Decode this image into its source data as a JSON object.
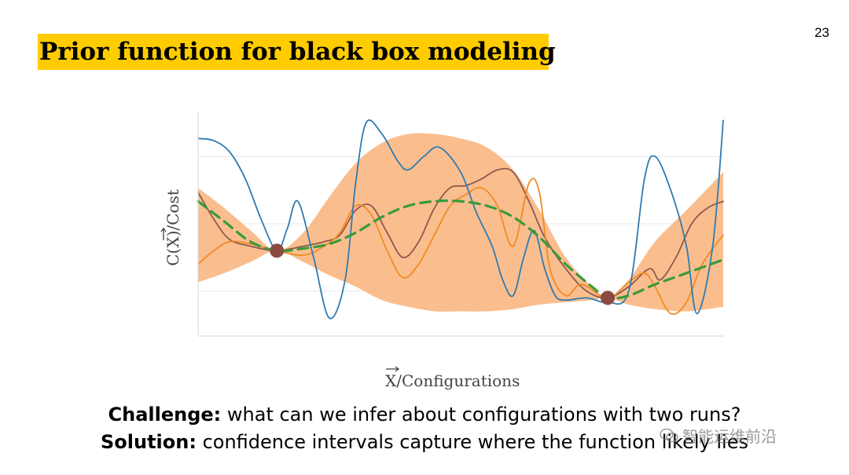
{
  "slide": {
    "number": "23",
    "title": "Prior function for black box modeling"
  },
  "footer": {
    "challenge_label": "Challenge:",
    "challenge_text": " what can we infer about configurations with two runs?",
    "solution_label": "Solution:",
    "solution_text": " confidence intervals capture where the function likely lies"
  },
  "watermark": {
    "text": "智能运维前沿",
    "icon": "wechat-icon"
  },
  "chart_data": {
    "type": "line",
    "title": "",
    "xlabel": "X/Configurations",
    "ylabel": "C(X)/Cost",
    "xlim": [
      0,
      1
    ],
    "ylim": [
      0,
      1
    ],
    "grid": true,
    "legend": "none",
    "colors": {
      "band": "#f9b37a",
      "mean": "#3a9a3a",
      "blue": "#2f7bb0",
      "orange": "#f08a24",
      "brown": "#8c5a4e",
      "observation": "#8b4a42"
    },
    "observations": [
      {
        "x": 0.15,
        "y": 0.38
      },
      {
        "x": 0.78,
        "y": 0.17
      }
    ],
    "confidence_band": {
      "x": [
        0.0,
        0.05,
        0.1,
        0.15,
        0.2,
        0.25,
        0.3,
        0.35,
        0.4,
        0.45,
        0.5,
        0.55,
        0.6,
        0.65,
        0.7,
        0.75,
        0.78,
        0.82,
        0.87,
        0.93,
        1.0
      ],
      "upper": [
        0.66,
        0.57,
        0.47,
        0.38,
        0.46,
        0.62,
        0.77,
        0.86,
        0.9,
        0.9,
        0.88,
        0.84,
        0.74,
        0.56,
        0.35,
        0.22,
        0.17,
        0.25,
        0.42,
        0.56,
        0.73
      ],
      "lower": [
        0.24,
        0.28,
        0.33,
        0.38,
        0.33,
        0.27,
        0.22,
        0.16,
        0.13,
        0.11,
        0.11,
        0.11,
        0.12,
        0.14,
        0.15,
        0.16,
        0.17,
        0.14,
        0.12,
        0.11,
        0.13
      ]
    },
    "series": [
      {
        "key": "mean",
        "dashed": true,
        "x": [
          0.0,
          0.05,
          0.1,
          0.15,
          0.2,
          0.25,
          0.3,
          0.35,
          0.4,
          0.45,
          0.5,
          0.55,
          0.6,
          0.65,
          0.7,
          0.75,
          0.78,
          0.82,
          0.87,
          0.93,
          1.0
        ],
        "y": [
          0.6,
          0.51,
          0.42,
          0.38,
          0.39,
          0.41,
          0.46,
          0.53,
          0.58,
          0.6,
          0.6,
          0.58,
          0.53,
          0.44,
          0.32,
          0.22,
          0.17,
          0.18,
          0.23,
          0.28,
          0.34
        ]
      },
      {
        "key": "blue",
        "dashed": false,
        "x": [
          0.0,
          0.03,
          0.06,
          0.09,
          0.12,
          0.15,
          0.17,
          0.19,
          0.22,
          0.25,
          0.28,
          0.3,
          0.32,
          0.35,
          0.38,
          0.4,
          0.43,
          0.46,
          0.5,
          0.53,
          0.56,
          0.58,
          0.6,
          0.62,
          0.64,
          0.66,
          0.68,
          0.7,
          0.74,
          0.78,
          0.82,
          0.85,
          0.87,
          0.9,
          0.93,
          0.95,
          0.98,
          1.0
        ],
        "y": [
          0.88,
          0.87,
          0.82,
          0.7,
          0.52,
          0.38,
          0.48,
          0.6,
          0.35,
          0.08,
          0.25,
          0.68,
          0.95,
          0.9,
          0.78,
          0.74,
          0.8,
          0.84,
          0.73,
          0.55,
          0.4,
          0.25,
          0.18,
          0.35,
          0.47,
          0.3,
          0.18,
          0.16,
          0.17,
          0.15,
          0.2,
          0.7,
          0.8,
          0.65,
          0.4,
          0.1,
          0.4,
          0.96
        ]
      },
      {
        "key": "orange",
        "dashed": false,
        "x": [
          0.0,
          0.03,
          0.06,
          0.1,
          0.15,
          0.2,
          0.24,
          0.27,
          0.3,
          0.33,
          0.36,
          0.39,
          0.42,
          0.45,
          0.48,
          0.51,
          0.54,
          0.57,
          0.6,
          0.63,
          0.65,
          0.67,
          0.7,
          0.73,
          0.78,
          0.82,
          0.85,
          0.87,
          0.9,
          0.93,
          0.96,
          1.0
        ],
        "y": [
          0.32,
          0.38,
          0.42,
          0.41,
          0.38,
          0.36,
          0.4,
          0.46,
          0.58,
          0.54,
          0.38,
          0.26,
          0.32,
          0.45,
          0.58,
          0.63,
          0.66,
          0.58,
          0.4,
          0.68,
          0.64,
          0.3,
          0.18,
          0.23,
          0.17,
          0.24,
          0.28,
          0.22,
          0.1,
          0.15,
          0.32,
          0.45
        ]
      },
      {
        "key": "brown",
        "dashed": false,
        "x": [
          0.0,
          0.03,
          0.06,
          0.1,
          0.15,
          0.2,
          0.24,
          0.27,
          0.3,
          0.33,
          0.36,
          0.39,
          0.42,
          0.45,
          0.48,
          0.51,
          0.54,
          0.57,
          0.6,
          0.63,
          0.66,
          0.7,
          0.74,
          0.78,
          0.82,
          0.86,
          0.88,
          0.91,
          0.94,
          0.97,
          1.0
        ],
        "y": [
          0.64,
          0.52,
          0.43,
          0.4,
          0.38,
          0.4,
          0.42,
          0.45,
          0.56,
          0.58,
          0.46,
          0.35,
          0.42,
          0.57,
          0.66,
          0.67,
          0.7,
          0.74,
          0.73,
          0.6,
          0.44,
          0.3,
          0.2,
          0.17,
          0.22,
          0.3,
          0.25,
          0.35,
          0.5,
          0.57,
          0.6
        ]
      }
    ]
  }
}
